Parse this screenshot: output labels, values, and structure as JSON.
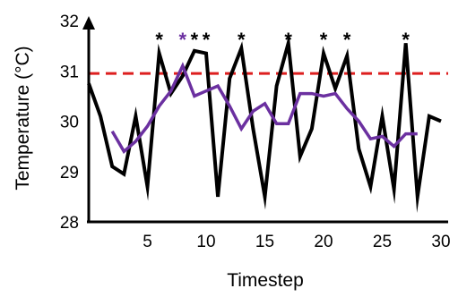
{
  "chart_data": {
    "type": "line",
    "title": "",
    "xlabel": "Timestep",
    "ylabel": "Temperature (°C)",
    "xlim": [
      0,
      30
    ],
    "ylim": [
      28,
      32
    ],
    "xticks": [
      5,
      10,
      15,
      20,
      25,
      30
    ],
    "yticks": [
      28,
      29,
      30,
      31,
      32
    ],
    "grid": false,
    "legend": "none",
    "threshold": {
      "value": 30.95,
      "color": "#dd1f1f",
      "style": "dashed"
    },
    "series": [
      {
        "color": "#000000",
        "x": [
          0,
          1,
          2,
          3,
          4,
          5,
          6,
          7,
          8,
          9,
          10,
          11,
          12,
          13,
          14,
          15,
          16,
          17,
          18,
          19,
          20,
          21,
          22,
          23,
          24,
          25,
          26,
          27,
          28,
          29,
          30
        ],
        "values": [
          30.75,
          30.1,
          29.1,
          28.95,
          30.1,
          28.7,
          31.35,
          30.55,
          30.9,
          31.4,
          31.35,
          28.5,
          30.85,
          31.45,
          29.85,
          28.5,
          30.7,
          31.55,
          29.3,
          29.85,
          31.35,
          30.65,
          31.3,
          29.45,
          28.7,
          30.1,
          28.65,
          31.55,
          28.5,
          30.1,
          30.0
        ]
      },
      {
        "color": "#6b30a0",
        "x": [
          2,
          3,
          4,
          5,
          6,
          7,
          8,
          9,
          10,
          11,
          12,
          13,
          14,
          15,
          16,
          17,
          18,
          19,
          20,
          21,
          22,
          23,
          24,
          25,
          26,
          27,
          28
        ],
        "values": [
          29.8,
          29.4,
          29.6,
          29.9,
          30.3,
          30.6,
          31.1,
          30.5,
          30.6,
          30.7,
          30.3,
          29.85,
          30.2,
          30.35,
          29.95,
          29.95,
          30.55,
          30.55,
          30.5,
          30.55,
          30.25,
          30.0,
          29.65,
          29.7,
          29.5,
          29.75,
          29.75
        ]
      }
    ],
    "annotations": [
      {
        "text": "*",
        "x": 6,
        "color": "#000000"
      },
      {
        "text": "*",
        "x": 8,
        "color": "#6b30a0"
      },
      {
        "text": "*",
        "x": 9,
        "color": "#000000"
      },
      {
        "text": "*",
        "x": 10,
        "color": "#000000"
      },
      {
        "text": "*",
        "x": 13,
        "color": "#000000"
      },
      {
        "text": "*",
        "x": 17,
        "color": "#000000"
      },
      {
        "text": "*",
        "x": 20,
        "color": "#000000"
      },
      {
        "text": "*",
        "x": 22,
        "color": "#000000"
      },
      {
        "text": "*",
        "x": 27,
        "color": "#000000"
      }
    ]
  }
}
